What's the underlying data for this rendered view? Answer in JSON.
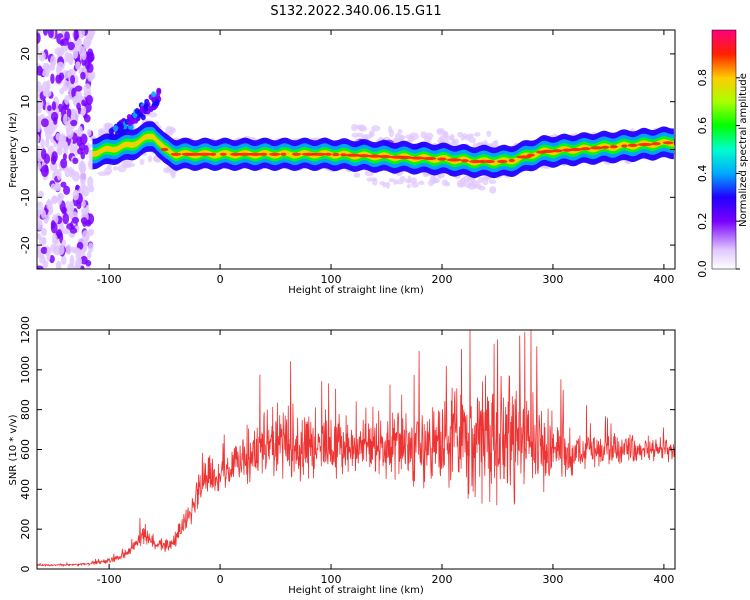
{
  "title": "S132.2022.340.06.15.G11",
  "chart_data": [
    {
      "type": "heatmap",
      "xlabel": "Height of straight line (km)",
      "ylabel": "Frequency (Hz)",
      "xlim": [
        -165,
        410
      ],
      "ylim": [
        -25,
        25
      ],
      "xticks": [
        -100,
        0,
        100,
        200,
        300,
        400
      ],
      "yticks": [
        -20,
        -10,
        0,
        10,
        20
      ],
      "ridge": {
        "x": [
          -120,
          -100,
          -80,
          -60,
          -50,
          -40,
          -20,
          0,
          50,
          100,
          150,
          200,
          230,
          260,
          290,
          320,
          350,
          380,
          410
        ],
        "y": [
          -1,
          0,
          1,
          3,
          0,
          -1,
          -1,
          -1,
          -1,
          -1,
          -1.5,
          -2,
          -2.5,
          -2.5,
          -0.5,
          0,
          0.5,
          1,
          1.5
        ]
      },
      "colorbar": {
        "label": "Normalized spectral amplitude",
        "range": [
          0,
          1
        ],
        "ticks": [
          0.0,
          0.2,
          0.4,
          0.6,
          0.8
        ]
      }
    },
    {
      "type": "line",
      "xlabel": "Height of straight line (km)",
      "ylabel": "SNR (10 * v/v)",
      "xlim": [
        -165,
        410
      ],
      "ylim": [
        0,
        1200
      ],
      "xticks": [
        -100,
        0,
        100,
        200,
        300,
        400
      ],
      "yticks": [
        0,
        200,
        400,
        600,
        800,
        1000,
        1200
      ],
      "color": "#ee3333",
      "series": [
        {
          "x": [
            -165,
            -140,
            -120,
            -100,
            -90,
            -80,
            -70,
            -60,
            -50,
            -40,
            -30,
            -20,
            -10,
            0,
            10,
            20,
            40,
            60,
            80,
            100,
            120,
            140,
            160,
            180,
            200,
            220,
            240,
            260,
            280,
            300,
            320,
            340,
            360,
            380,
            410
          ],
          "y": [
            20,
            20,
            25,
            40,
            60,
            100,
            170,
            130,
            120,
            150,
            250,
            400,
            500,
            450,
            500,
            560,
            620,
            640,
            620,
            630,
            610,
            600,
            600,
            610,
            640,
            650,
            640,
            650,
            640,
            610,
            600,
            600,
            590,
            600,
            600
          ],
          "spread": [
            5,
            5,
            8,
            15,
            20,
            30,
            60,
            40,
            40,
            50,
            80,
            120,
            140,
            100,
            120,
            160,
            200,
            220,
            200,
            210,
            180,
            180,
            220,
            250,
            300,
            350,
            420,
            420,
            380,
            220,
            140,
            100,
            90,
            80,
            80
          ]
        }
      ]
    }
  ]
}
